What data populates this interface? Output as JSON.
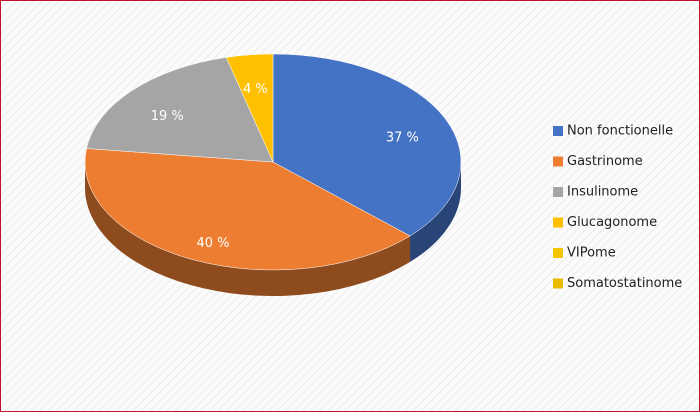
{
  "chart_data": {
    "type": "pie",
    "categories": [
      "Non fonctionelle",
      "Gastrinome",
      "Insulinome",
      "Glucagonome",
      "VIPome",
      "Somatostatinome"
    ],
    "values": [
      37,
      40,
      19,
      4,
      0,
      0
    ],
    "value_labels": [
      "37 %",
      "40 %",
      "19 %",
      "4 %",
      null,
      null
    ],
    "colors": [
      "#4472c4",
      "#ed7d31",
      "#a5a5a5",
      "#ffc000",
      "#f5c400",
      "#e8bb00"
    ],
    "legend": "right"
  }
}
